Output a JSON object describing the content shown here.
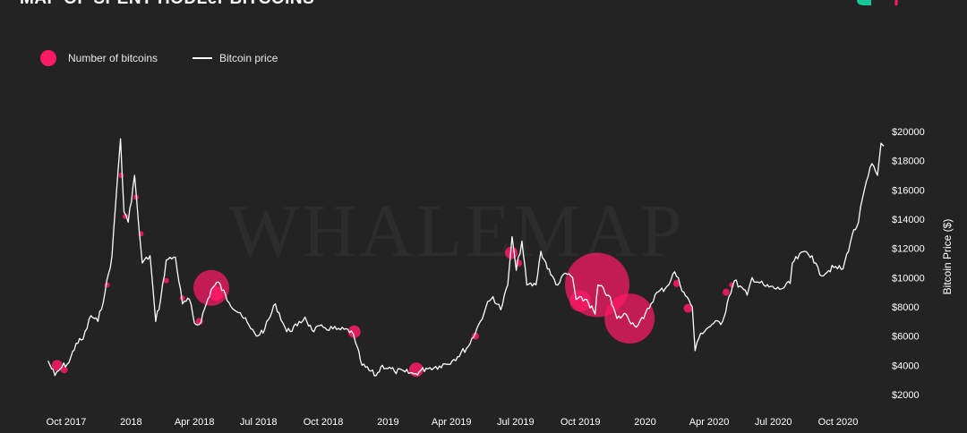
{
  "title": "MAP OF SPENT HODLer BITCOINS",
  "watermark": "WHALEMAP",
  "colors": {
    "background": "#232323",
    "bubble": "#ff1a66",
    "price_line": "#ffffff",
    "logo_green": "#16c79a",
    "logo_pink": "#ff1a66"
  },
  "legend": {
    "bubbles_label": "Number of bitcoins",
    "line_label": "Bitcoin price"
  },
  "chart_data": {
    "type": "scatter",
    "ylabel": "Bitcoin Price ($)",
    "ylim": [
      2000,
      20000
    ],
    "y_ticks": [
      {
        "value": 2000,
        "label": "$2000"
      },
      {
        "value": 4000,
        "label": "$4000"
      },
      {
        "value": 6000,
        "label": "$6000"
      },
      {
        "value": 8000,
        "label": "$8000"
      },
      {
        "value": 10000,
        "label": "$10000"
      },
      {
        "value": 12000,
        "label": "$12000"
      },
      {
        "value": 14000,
        "label": "$14000"
      },
      {
        "value": 16000,
        "label": "$16000"
      },
      {
        "value": 18000,
        "label": "$18000"
      },
      {
        "value": 20000,
        "label": "$20000"
      }
    ],
    "x_ticks": [
      {
        "date": "2017-10-01",
        "label": "Oct 2017"
      },
      {
        "date": "2018-01-01",
        "label": "2018"
      },
      {
        "date": "2018-04-01",
        "label": "Apr 2018"
      },
      {
        "date": "2018-07-01",
        "label": "Jul 2018"
      },
      {
        "date": "2018-10-01",
        "label": "Oct 2018"
      },
      {
        "date": "2019-01-01",
        "label": "2019"
      },
      {
        "date": "2019-04-01",
        "label": "Apr 2019"
      },
      {
        "date": "2019-07-01",
        "label": "Jul 2019"
      },
      {
        "date": "2019-10-01",
        "label": "Oct 2019"
      },
      {
        "date": "2020-01-01",
        "label": "2020"
      },
      {
        "date": "2020-04-01",
        "label": "Apr 2020"
      },
      {
        "date": "2020-07-01",
        "label": "Jul 2020"
      },
      {
        "date": "2020-10-01",
        "label": "Oct 2020"
      }
    ],
    "series": [
      {
        "name": "Bitcoin price",
        "type": "line",
        "points": [
          [
            "2017-09-05",
            4300
          ],
          [
            "2017-09-15",
            3300
          ],
          [
            "2017-09-25",
            3900
          ],
          [
            "2017-10-05",
            4200
          ],
          [
            "2017-10-15",
            5500
          ],
          [
            "2017-10-25",
            5800
          ],
          [
            "2017-11-05",
            7400
          ],
          [
            "2017-11-15",
            7000
          ],
          [
            "2017-11-25",
            9000
          ],
          [
            "2017-12-05",
            11500
          ],
          [
            "2017-12-10",
            15000
          ],
          [
            "2017-12-17",
            19500
          ],
          [
            "2017-12-22",
            14500
          ],
          [
            "2017-12-28",
            13800
          ],
          [
            "2018-01-06",
            17000
          ],
          [
            "2018-01-12",
            13500
          ],
          [
            "2018-01-17",
            11000
          ],
          [
            "2018-01-28",
            11500
          ],
          [
            "2018-02-05",
            7000
          ],
          [
            "2018-02-12",
            8500
          ],
          [
            "2018-02-20",
            11200
          ],
          [
            "2018-03-05",
            11400
          ],
          [
            "2018-03-15",
            8200
          ],
          [
            "2018-03-25",
            8500
          ],
          [
            "2018-04-01",
            6900
          ],
          [
            "2018-04-08",
            6800
          ],
          [
            "2018-04-25",
            9200
          ],
          [
            "2018-05-05",
            9700
          ],
          [
            "2018-05-20",
            8300
          ],
          [
            "2018-06-05",
            7600
          ],
          [
            "2018-06-20",
            6500
          ],
          [
            "2018-06-28",
            6000
          ],
          [
            "2018-07-10",
            6500
          ],
          [
            "2018-07-25",
            8200
          ],
          [
            "2018-08-10",
            6300
          ],
          [
            "2018-08-25",
            6700
          ],
          [
            "2018-09-05",
            7300
          ],
          [
            "2018-09-15",
            6400
          ],
          [
            "2018-10-01",
            6600
          ],
          [
            "2018-10-20",
            6450
          ],
          [
            "2018-11-10",
            6350
          ],
          [
            "2018-11-16",
            5500
          ],
          [
            "2018-11-25",
            4000
          ],
          [
            "2018-12-15",
            3300
          ],
          [
            "2018-12-24",
            4000
          ],
          [
            "2019-01-10",
            3600
          ],
          [
            "2019-01-25",
            3550
          ],
          [
            "2019-02-07",
            3400
          ],
          [
            "2019-02-24",
            3800
          ],
          [
            "2019-03-15",
            3950
          ],
          [
            "2019-04-02",
            4300
          ],
          [
            "2019-04-25",
            5300
          ],
          [
            "2019-05-12",
            7000
          ],
          [
            "2019-05-20",
            8000
          ],
          [
            "2019-05-30",
            8700
          ],
          [
            "2019-06-10",
            7800
          ],
          [
            "2019-06-20",
            9500
          ],
          [
            "2019-06-26",
            12800
          ],
          [
            "2019-07-02",
            10500
          ],
          [
            "2019-07-10",
            12500
          ],
          [
            "2019-07-17",
            9500
          ],
          [
            "2019-07-30",
            9500
          ],
          [
            "2019-08-06",
            11800
          ],
          [
            "2019-08-20",
            10200
          ],
          [
            "2019-08-30",
            9500
          ],
          [
            "2019-09-10",
            10300
          ],
          [
            "2019-09-20",
            10000
          ],
          [
            "2019-09-25",
            8500
          ],
          [
            "2019-10-10",
            8500
          ],
          [
            "2019-10-22",
            7500
          ],
          [
            "2019-10-26",
            9500
          ],
          [
            "2019-11-10",
            8800
          ],
          [
            "2019-11-22",
            7200
          ],
          [
            "2019-12-05",
            7500
          ],
          [
            "2019-12-17",
            6700
          ],
          [
            "2019-12-30",
            7200
          ],
          [
            "2020-01-15",
            8800
          ],
          [
            "2020-02-01",
            9400
          ],
          [
            "2020-02-12",
            10400
          ],
          [
            "2020-02-25",
            9000
          ],
          [
            "2020-03-08",
            8000
          ],
          [
            "2020-03-12",
            5000
          ],
          [
            "2020-03-20",
            6200
          ],
          [
            "2020-04-05",
            6800
          ],
          [
            "2020-04-20",
            7000
          ],
          [
            "2020-04-29",
            8700
          ],
          [
            "2020-05-07",
            9800
          ],
          [
            "2020-05-25",
            8800
          ],
          [
            "2020-06-01",
            10000
          ],
          [
            "2020-06-20",
            9400
          ],
          [
            "2020-07-10",
            9200
          ],
          [
            "2020-07-25",
            9600
          ],
          [
            "2020-07-28",
            11000
          ],
          [
            "2020-08-15",
            11800
          ],
          [
            "2020-08-25",
            11500
          ],
          [
            "2020-09-05",
            10200
          ],
          [
            "2020-09-25",
            10700
          ],
          [
            "2020-10-08",
            10600
          ],
          [
            "2020-10-21",
            12900
          ],
          [
            "2020-10-30",
            13800
          ],
          [
            "2020-11-05",
            15500
          ],
          [
            "2020-11-18",
            17800
          ],
          [
            "2020-11-26",
            17000
          ],
          [
            "2020-12-01",
            19200
          ],
          [
            "2020-12-05",
            19000
          ]
        ]
      },
      {
        "name": "Number of bitcoins",
        "type": "bubble",
        "points": [
          {
            "date": "2017-09-18",
            "price": 4000,
            "size": 6
          },
          {
            "date": "2017-09-28",
            "price": 3700,
            "size": 4
          },
          {
            "date": "2017-11-28",
            "price": 9500,
            "size": 3
          },
          {
            "date": "2017-12-18",
            "price": 17000,
            "size": 3
          },
          {
            "date": "2017-12-24",
            "price": 14200,
            "size": 3
          },
          {
            "date": "2018-01-08",
            "price": 15500,
            "size": 3
          },
          {
            "date": "2018-01-15",
            "price": 13000,
            "size": 3
          },
          {
            "date": "2018-02-20",
            "price": 9800,
            "size": 3
          },
          {
            "date": "2018-03-15",
            "price": 8600,
            "size": 3
          },
          {
            "date": "2018-04-08",
            "price": 7000,
            "size": 4
          },
          {
            "date": "2018-04-25",
            "price": 9300,
            "size": 20
          },
          {
            "date": "2018-05-02",
            "price": 8900,
            "size": 8
          },
          {
            "date": "2018-11-14",
            "price": 6300,
            "size": 7
          },
          {
            "date": "2019-02-10",
            "price": 3700,
            "size": 8
          },
          {
            "date": "2019-05-05",
            "price": 6000,
            "size": 4
          },
          {
            "date": "2019-06-25",
            "price": 11700,
            "size": 7
          },
          {
            "date": "2019-07-05",
            "price": 11000,
            "size": 4
          },
          {
            "date": "2019-10-01",
            "price": 8400,
            "size": 12
          },
          {
            "date": "2019-10-25",
            "price": 9500,
            "size": 36
          },
          {
            "date": "2019-12-10",
            "price": 7200,
            "size": 28
          },
          {
            "date": "2020-02-15",
            "price": 9600,
            "size": 4
          },
          {
            "date": "2020-03-02",
            "price": 7900,
            "size": 5
          },
          {
            "date": "2020-04-25",
            "price": 9000,
            "size": 4
          },
          {
            "date": "2020-05-03",
            "price": 9500,
            "size": 3
          }
        ]
      }
    ]
  }
}
